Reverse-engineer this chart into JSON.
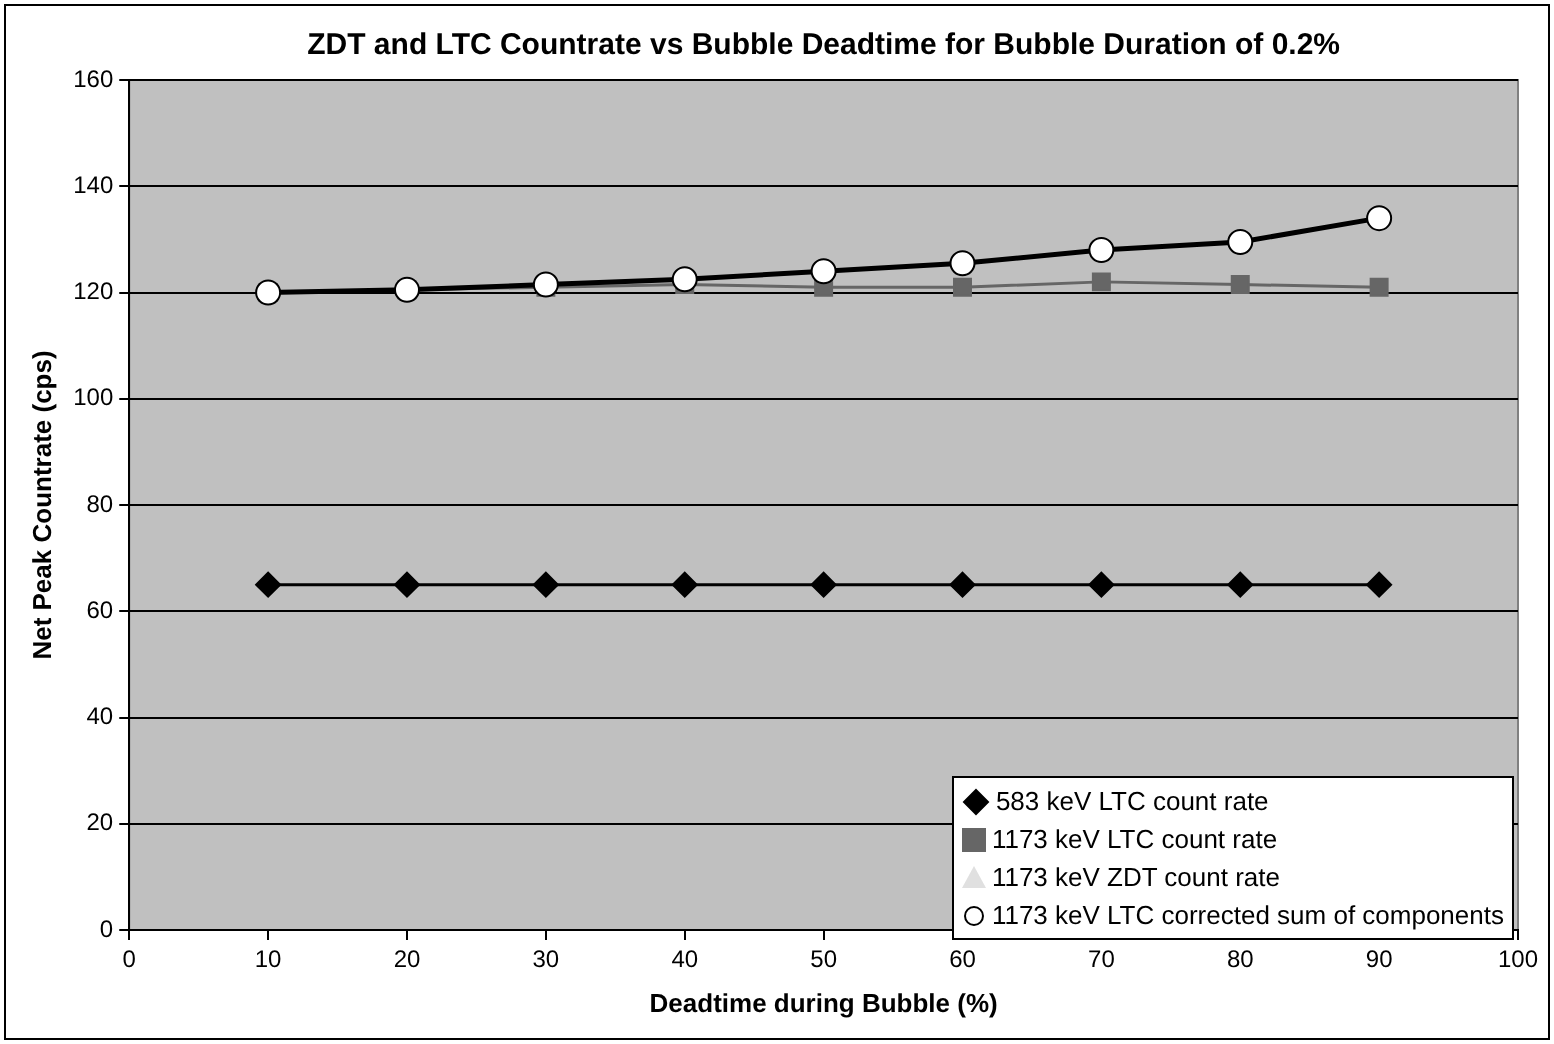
{
  "chart_data": {
    "type": "line",
    "title": "ZDT and LTC Countrate vs Bubble Deadtime for Bubble Duration of 0.2%",
    "xlabel": "Deadtime during Bubble (%)",
    "ylabel": "Net Peak Countrate (cps)",
    "x": [
      10,
      20,
      30,
      40,
      50,
      60,
      70,
      80,
      90
    ],
    "series": [
      {
        "name": "583 keV LTC count rate",
        "color": "#000000",
        "marker": "diamond",
        "values": [
          65,
          65,
          65,
          65,
          65,
          65,
          65,
          65,
          65
        ]
      },
      {
        "name": "1173 keV LTC count rate",
        "color": "#666666",
        "marker": "square",
        "values": [
          120,
          120.5,
          121,
          121.5,
          121,
          121,
          122,
          121.5,
          121
        ]
      },
      {
        "name": "1173 keV ZDT count rate",
        "color": "#e0e0e0",
        "marker": "triangle",
        "values": [
          null,
          null,
          null,
          null,
          null,
          null,
          null,
          null,
          null
        ]
      },
      {
        "name": "1173 keV LTC corrected sum of components",
        "color": "#000000",
        "marker": "circle",
        "values": [
          120,
          120.5,
          121.5,
          122.5,
          124,
          125.5,
          128,
          129.5,
          134
        ]
      }
    ],
    "xlim": [
      0,
      100
    ],
    "xticks": [
      0,
      10,
      20,
      30,
      40,
      50,
      60,
      70,
      80,
      90,
      100
    ],
    "ylim": [
      0,
      160
    ],
    "yticks": [
      0,
      20,
      40,
      60,
      80,
      100,
      120,
      140,
      160
    ],
    "grid": "y",
    "legend": "bottom right"
  }
}
